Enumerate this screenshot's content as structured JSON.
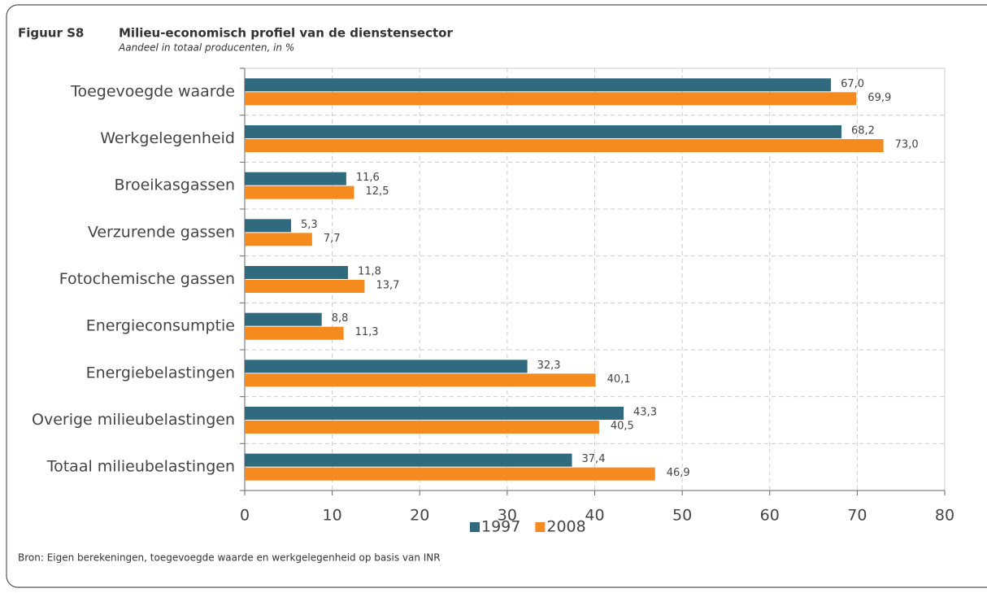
{
  "chart_data": {
    "type": "barh",
    "figure_label": "Figuur S8",
    "title": "Milieu-economisch profiel van de dienstensector",
    "subtitle": "Aandeel in totaal producenten, in %",
    "categories": [
      "Toegevoegde waarde",
      "Werkgelegenheid",
      "Broeikasgassen",
      "Verzurende gassen",
      "Fotochemische gassen",
      "Energieconsumptie",
      "Energiebelastingen",
      "Overige milieubelastingen",
      "Totaal milieubelastingen"
    ],
    "series": [
      {
        "name": "1997",
        "color": "#2f6a7f",
        "values": [
          67.0,
          68.2,
          11.6,
          5.3,
          11.8,
          8.8,
          32.3,
          43.3,
          37.4
        ],
        "value_labels": [
          "67,0",
          "68,2",
          "11,6",
          "5,3",
          "11,8",
          "8,8",
          "32,3",
          "43,3",
          "37,4"
        ]
      },
      {
        "name": "2008",
        "color": "#f58a1f",
        "values": [
          69.9,
          73.0,
          12.5,
          7.7,
          13.7,
          11.3,
          40.1,
          40.5,
          46.9
        ],
        "value_labels": [
          "69,9",
          "73,0",
          "12,5",
          "7,7",
          "13,7",
          "11,3",
          "40,1",
          "40,5",
          "46,9"
        ]
      }
    ],
    "xlim": [
      0,
      80
    ],
    "xticks": [
      0,
      10,
      20,
      30,
      40,
      50,
      60,
      70,
      80
    ],
    "grid": true,
    "legend": "bottom",
    "source": "Bron: Eigen berekeningen, toegevoegde waarde en werkgelegenheid op basis van INR"
  }
}
